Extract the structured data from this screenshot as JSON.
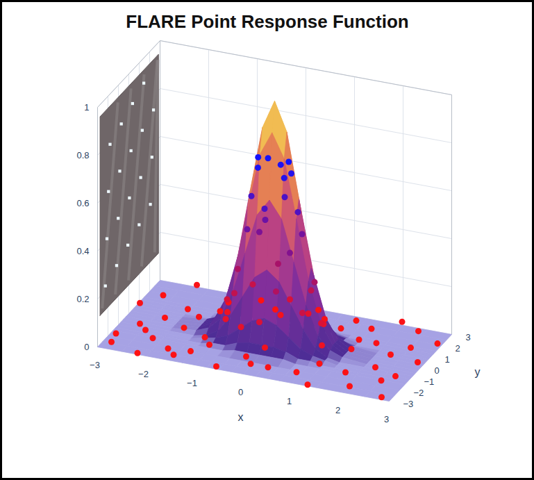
{
  "chart_data": {
    "type": "surface",
    "title": "FLARE Point Response Function",
    "xlabel": "x",
    "ylabel": "y",
    "xlim": [
      -3,
      3
    ],
    "ylim": [
      -3,
      3
    ],
    "zlim": [
      0,
      1
    ],
    "xticks": [
      -3,
      -2,
      -1,
      0,
      1,
      2,
      3
    ],
    "yticks": [
      -3,
      -2,
      -1,
      0,
      1,
      2,
      3
    ],
    "zticks": [
      0,
      0.2,
      0.4,
      0.6,
      0.8,
      1
    ],
    "grid": true,
    "surface": {
      "x": [
        -3,
        -2.5,
        -2,
        -1.5,
        -1.25,
        -1,
        -0.75,
        -0.5,
        -0.25,
        0,
        0.25,
        0.5,
        0.75,
        1,
        1.25,
        1.5,
        2,
        2.5,
        3
      ],
      "y": [
        -3,
        -2.5,
        -2,
        -1.5,
        -1.25,
        -1,
        -0.75,
        -0.5,
        -0.25,
        0,
        0.25,
        0.5,
        0.75,
        1,
        1.25,
        1.5,
        2,
        2.5,
        3
      ],
      "z": [
        [
          0,
          0,
          0,
          0,
          0,
          0,
          0,
          0,
          0,
          0,
          0,
          0,
          0,
          0,
          0,
          0,
          0,
          0,
          0
        ],
        [
          0,
          0,
          0,
          0,
          0,
          0,
          0,
          0,
          0,
          0,
          0,
          0,
          0,
          0,
          0,
          0,
          0,
          0,
          0
        ],
        [
          0,
          0,
          0,
          0,
          0,
          0,
          0,
          0,
          0,
          0,
          0,
          0,
          0,
          0,
          0,
          0,
          0,
          0,
          0
        ],
        [
          0,
          0,
          0,
          0,
          0,
          0,
          0,
          0.01,
          0.01,
          0.01,
          0.01,
          0.01,
          0,
          0,
          0,
          0,
          0,
          0,
          0
        ],
        [
          0,
          0,
          0,
          0,
          0,
          0.01,
          0.01,
          0.03,
          0.04,
          0.04,
          0.04,
          0.03,
          0.01,
          0.01,
          0,
          0,
          0,
          0,
          0
        ],
        [
          0,
          0,
          0,
          0,
          0.01,
          0.02,
          0.04,
          0.08,
          0.12,
          0.14,
          0.12,
          0.08,
          0.04,
          0.02,
          0.01,
          0,
          0,
          0,
          0
        ],
        [
          0,
          0,
          0,
          0,
          0.01,
          0.04,
          0.11,
          0.2,
          0.29,
          0.33,
          0.29,
          0.2,
          0.11,
          0.04,
          0.01,
          0,
          0,
          0,
          0
        ],
        [
          0,
          0,
          0,
          0.01,
          0.03,
          0.08,
          0.2,
          0.37,
          0.54,
          0.61,
          0.54,
          0.37,
          0.2,
          0.08,
          0.03,
          0.01,
          0,
          0,
          0
        ],
        [
          0,
          0,
          0,
          0.01,
          0.04,
          0.12,
          0.29,
          0.54,
          0.78,
          0.88,
          0.78,
          0.54,
          0.29,
          0.12,
          0.04,
          0.01,
          0,
          0,
          0
        ],
        [
          0,
          0,
          0,
          0.01,
          0.04,
          0.14,
          0.33,
          0.61,
          0.88,
          1,
          0.88,
          0.61,
          0.33,
          0.14,
          0.04,
          0.01,
          0,
          0,
          0
        ],
        [
          0,
          0,
          0,
          0.01,
          0.04,
          0.12,
          0.29,
          0.54,
          0.78,
          0.88,
          0.78,
          0.54,
          0.29,
          0.12,
          0.04,
          0.01,
          0,
          0,
          0
        ],
        [
          0,
          0,
          0,
          0.01,
          0.03,
          0.08,
          0.2,
          0.37,
          0.54,
          0.61,
          0.54,
          0.37,
          0.2,
          0.08,
          0.03,
          0.01,
          0,
          0,
          0
        ],
        [
          0,
          0,
          0,
          0,
          0.01,
          0.04,
          0.11,
          0.2,
          0.29,
          0.33,
          0.29,
          0.2,
          0.11,
          0.04,
          0.01,
          0,
          0,
          0,
          0
        ],
        [
          0,
          0,
          0,
          0,
          0.01,
          0.02,
          0.04,
          0.08,
          0.12,
          0.14,
          0.12,
          0.08,
          0.04,
          0.02,
          0.01,
          0,
          0,
          0,
          0
        ],
        [
          0,
          0,
          0,
          0,
          0,
          0.01,
          0.01,
          0.03,
          0.04,
          0.04,
          0.04,
          0.03,
          0.01,
          0.01,
          0,
          0,
          0,
          0,
          0
        ],
        [
          0,
          0,
          0,
          0,
          0,
          0,
          0,
          0.01,
          0.01,
          0.01,
          0.01,
          0.01,
          0,
          0,
          0,
          0,
          0,
          0,
          0
        ],
        [
          0,
          0,
          0,
          0,
          0,
          0,
          0,
          0,
          0,
          0,
          0,
          0,
          0,
          0,
          0,
          0,
          0,
          0,
          0
        ],
        [
          0,
          0,
          0,
          0,
          0,
          0,
          0,
          0,
          0,
          0,
          0,
          0,
          0,
          0,
          0,
          0,
          0,
          0,
          0
        ],
        [
          0,
          0,
          0,
          0,
          0,
          0,
          0,
          0,
          0,
          0,
          0,
          0,
          0,
          0,
          0,
          0,
          0,
          0,
          0
        ]
      ]
    },
    "points": {
      "marker": "circle",
      "x": [
        -2.8,
        -2.2,
        -1.5,
        -0.6,
        0.4,
        1.3,
        2.1,
        2.8,
        -2.9,
        -2.1,
        -1.3,
        -0.2,
        0.9,
        1.8,
        2.6,
        -2.6,
        -1.8,
        2.2,
        2.9,
        -2.9,
        -2.0,
        1.9,
        2.5,
        -2.7,
        -1.4,
        -0.5,
        0.6,
        1.5,
        2.4,
        2.9,
        -2.2,
        -0.9,
        0.3,
        1.1,
        2.0,
        -1.2,
        1.2,
        -1.4,
        1.5,
        0.1,
        -0.2,
        -1.6,
        1.6,
        -2.4,
        0.0,
        2.7,
        -2.3,
        -1.0,
        1.0,
        -1.7,
        2.3,
        -1.0,
        1.0,
        0.1,
        -0.1,
        -0.7,
        0.6,
        -0.6,
        0.7,
        -0.8,
        0.8,
        0.2,
        -0.1,
        -0.5,
        0.5,
        -0.3,
        0.4,
        -0.4,
        -0.5,
        0.5,
        0.1,
        -0.1,
        -0.3,
        0.3,
        -0.2,
        0.25,
        -0.35,
        0.3,
        0.05,
        -0.9,
        0.9,
        -0.5,
        0.5,
        -1.1,
        1.1
      ],
      "y": [
        -2.6,
        -2.9,
        -2.7,
        -2.8,
        -2.5,
        -2.9,
        -2.6,
        -2.8,
        -1.7,
        -1.9,
        -2.0,
        -1.8,
        -2.1,
        -1.6,
        -1.9,
        -0.8,
        -0.3,
        -0.6,
        0.2,
        0.6,
        1.0,
        0.9,
        1.4,
        1.9,
        2.1,
        2.4,
        2.0,
        2.3,
        2.6,
        2.1,
        2.8,
        2.9,
        2.8,
        2.7,
        2.9,
        -1.1,
        -1.3,
        1.3,
        1.1,
        -1.4,
        1.5,
        0.2,
        -0.1,
        -1.2,
        -2.3,
        -1.0,
        0.2,
        -1.6,
        1.7,
        -2.3,
        0.4,
        0.1,
        -0.2,
        1.0,
        -1.0,
        -0.6,
        0.7,
        0.7,
        -0.6,
        0.2,
        0.1,
        -0.8,
        0.8,
        -0.3,
        0.3,
        0.5,
        -0.4,
        0.4,
        0.1,
        -0.1,
        0.5,
        -0.5,
        -0.2,
        0.2,
        0.3,
        -0.25,
        0.05,
        -0.05,
        0.35,
        -0.5,
        0.5,
        -0.9,
        0.9,
        0.6,
        -0.6
      ],
      "z": [
        0.01,
        0,
        0.01,
        0,
        0.02,
        0,
        0.01,
        0,
        0,
        0.02,
        0,
        0.01,
        0,
        0.01,
        0.02,
        0.01,
        0,
        0,
        0.01,
        0.02,
        0.01,
        0.02,
        0,
        0,
        0.01,
        0,
        0.02,
        0,
        0.01,
        0,
        0.02,
        0,
        0.01,
        0,
        0.02,
        0.02,
        0.01,
        0.01,
        0.01,
        0.04,
        0.03,
        0.03,
        0.03,
        0.01,
        0.01,
        0,
        0,
        0.02,
        0.01,
        0.01,
        0.01,
        0.13,
        0.12,
        0.13,
        0.12,
        0.2,
        0.2,
        0.18,
        0.17,
        0.26,
        0.27,
        0.25,
        0.28,
        0.46,
        0.45,
        0.47,
        0.4,
        0.42,
        0.58,
        0.56,
        0.58,
        0.57,
        0.72,
        0.7,
        0.74,
        0.7,
        0.75,
        0.76,
        0.72,
        0.08,
        0.08,
        0.08,
        0.09,
        0.05,
        0.05
      ]
    }
  }
}
